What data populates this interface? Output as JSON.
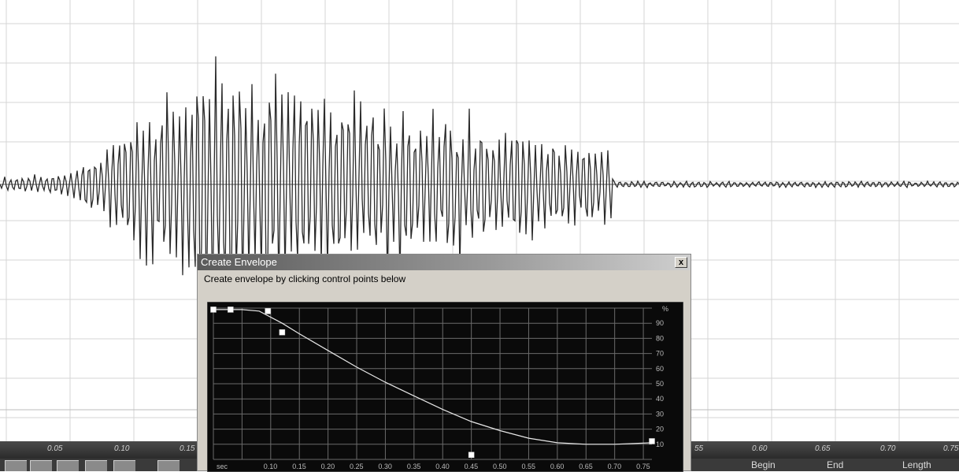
{
  "dialog": {
    "title": "Create Envelope",
    "instruction": "Create envelope by clicking control points below",
    "close_glyph": "x"
  },
  "timeline": {
    "ticks": [
      "0.05",
      "0.10",
      "0.15",
      "55",
      "0.60",
      "0.65",
      "0.70",
      "0.75"
    ]
  },
  "selection": {
    "begin_label": "Begin",
    "end_label": "End",
    "length_label": "Length"
  },
  "envelope": {
    "x_unit": "sec",
    "x_ticks": [
      "0.10",
      "0.15",
      "0.20",
      "0.25",
      "0.30",
      "0.35",
      "0.40",
      "0.45",
      "0.50",
      "0.55",
      "0.60",
      "0.65",
      "0.70",
      "0.75"
    ],
    "y_unit": "%",
    "y_ticks": [
      "90",
      "80",
      "70",
      "60",
      "50",
      "40",
      "30",
      "20",
      "10"
    ],
    "control_points": [
      {
        "t": 0.0,
        "v": 99
      },
      {
        "t": 0.03,
        "v": 99
      },
      {
        "t": 0.095,
        "v": 98
      },
      {
        "t": 0.12,
        "v": 84
      },
      {
        "t": 0.45,
        "v": 3
      },
      {
        "t": 0.765,
        "v": 12
      }
    ],
    "curve": [
      {
        "t": 0.0,
        "v": 99
      },
      {
        "t": 0.05,
        "v": 99
      },
      {
        "t": 0.08,
        "v": 98
      },
      {
        "t": 0.12,
        "v": 90
      },
      {
        "t": 0.15,
        "v": 83
      },
      {
        "t": 0.2,
        "v": 72
      },
      {
        "t": 0.25,
        "v": 61
      },
      {
        "t": 0.3,
        "v": 51
      },
      {
        "t": 0.35,
        "v": 42
      },
      {
        "t": 0.4,
        "v": 33
      },
      {
        "t": 0.45,
        "v": 25
      },
      {
        "t": 0.5,
        "v": 19
      },
      {
        "t": 0.55,
        "v": 14
      },
      {
        "t": 0.6,
        "v": 11
      },
      {
        "t": 0.65,
        "v": 10
      },
      {
        "t": 0.7,
        "v": 10
      },
      {
        "t": 0.765,
        "v": 11
      }
    ]
  },
  "colors": {
    "grid_bg": "#0a0a0a",
    "grid_line": "#6b6b6b",
    "curve": "#e8e8e8",
    "waveform": "#2a2a2a"
  }
}
